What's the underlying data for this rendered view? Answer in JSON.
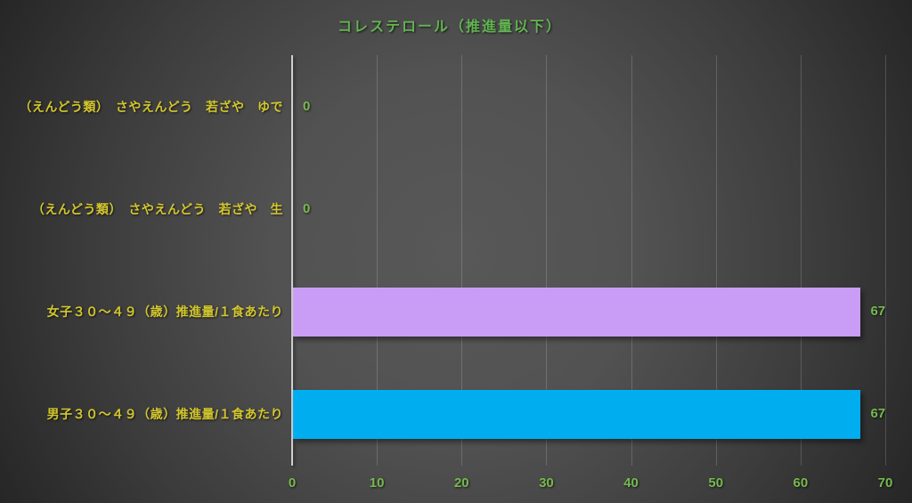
{
  "title": "コレステロール（推進量以下）",
  "colors": {
    "background_center": "#585858",
    "background_edge": "#262626",
    "title_green": "#62b452",
    "category_label_yellow": "#d3c72e",
    "value_label_green": "#77b94f",
    "axis_line_gray": "#cfcfcf",
    "bar_purple": "#c99df5",
    "bar_blue": "#00aeef"
  },
  "chart_data": {
    "type": "bar",
    "orientation": "horizontal",
    "title": "コレステロール（推進量以下）",
    "categories": [
      "（えんどう類）　さやえんどう　若ざや　ゆで",
      "（えんどう類）　さやえんどう　若ざや　生",
      "女子３０～４９（歳）推進量/１食あたり",
      "男子３０～４９（歳）推進量/１食あたり"
    ],
    "values": [
      0,
      0,
      67,
      67
    ],
    "value_labels": [
      "0",
      "0",
      "67",
      "67"
    ],
    "bar_colors": [
      null,
      null,
      "#c99df5",
      "#00aeef"
    ],
    "xlabel": "",
    "ylabel": "",
    "xlim": [
      0,
      70
    ],
    "xticks": [
      0,
      10,
      20,
      30,
      40,
      50,
      60,
      70
    ],
    "grid": true,
    "legend": false
  }
}
